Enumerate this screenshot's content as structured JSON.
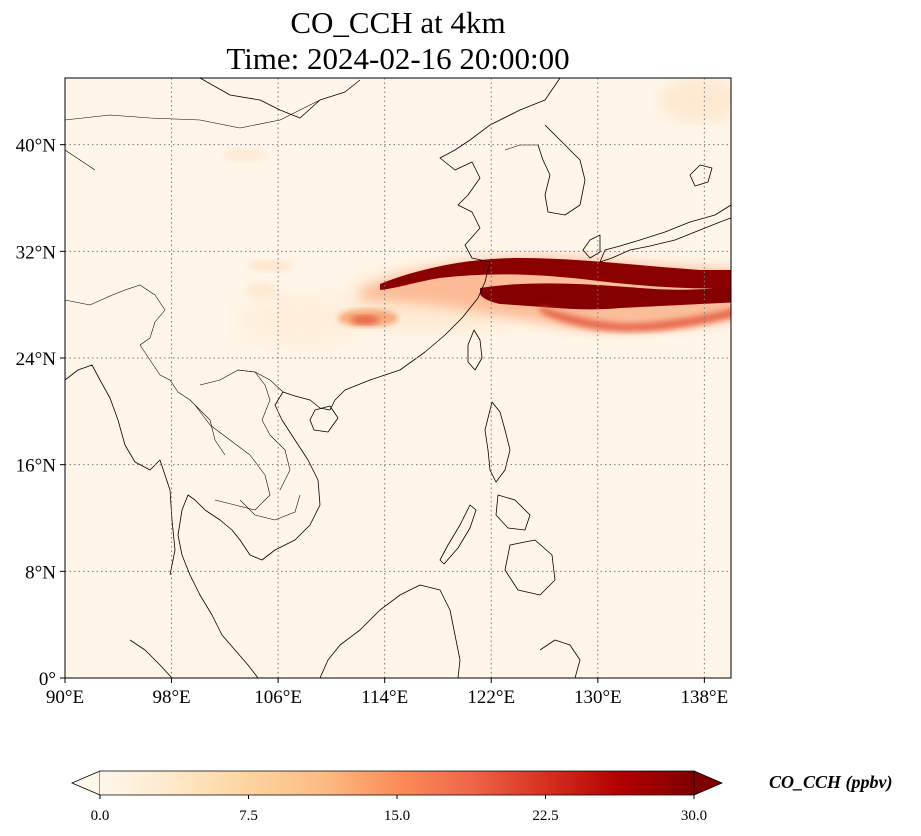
{
  "title": {
    "line1": "CO_CCH at 4km",
    "line2": "Time: 2024-02-16 20:00:00"
  },
  "map": {
    "extent": {
      "lon": [
        90,
        140
      ],
      "lat": [
        0,
        45
      ]
    },
    "lon_ticks": [
      {
        "value": 90,
        "label": "90°E"
      },
      {
        "value": 98,
        "label": "98°E"
      },
      {
        "value": 106,
        "label": "106°E"
      },
      {
        "value": 114,
        "label": "114°E"
      },
      {
        "value": 122,
        "label": "122°E"
      },
      {
        "value": 130,
        "label": "130°E"
      },
      {
        "value": 138,
        "label": "138°E"
      }
    ],
    "lat_ticks": [
      {
        "value": 0,
        "label": "0°"
      },
      {
        "value": 8,
        "label": "8°N"
      },
      {
        "value": 16,
        "label": "16°N"
      },
      {
        "value": 24,
        "label": "24°N"
      },
      {
        "value": 32,
        "label": "32°N"
      },
      {
        "value": 40,
        "label": "40°N"
      }
    ],
    "gridlines": "dotted",
    "background_color": "#fff5e8",
    "coastline_color": "#000000"
  },
  "colorbar": {
    "label": "CO_CCH (ppbv)",
    "colormap": "OrRd",
    "vmin": 0.0,
    "vmax": 30.0,
    "extend": "both",
    "ticks": [
      {
        "value": 0.0,
        "label": "0.0"
      },
      {
        "value": 7.5,
        "label": "7.5"
      },
      {
        "value": 15.0,
        "label": "15.0"
      },
      {
        "value": 22.5,
        "label": "22.5"
      },
      {
        "value": 30.0,
        "label": "30.0"
      }
    ],
    "colors": [
      "#fff7ec",
      "#fee8c8",
      "#fdd49e",
      "#fdbb84",
      "#fc8d59",
      "#ef6548",
      "#d7301f",
      "#b30000",
      "#7f0000"
    ]
  }
}
